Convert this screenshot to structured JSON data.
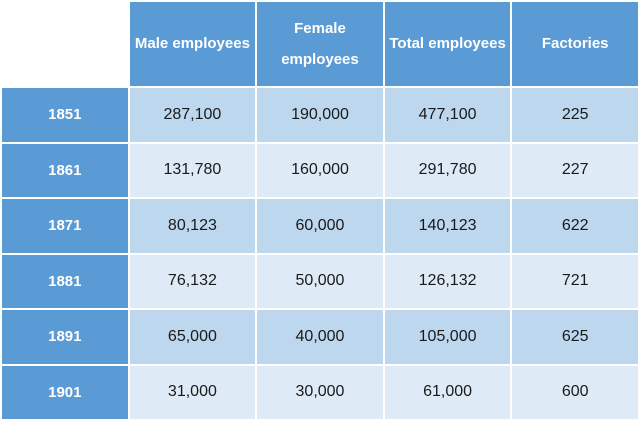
{
  "colors": {
    "header_bg": "#5b9bd5",
    "row_band_dark": "#bdd7ee",
    "row_band_light": "#deeaf6",
    "header_text": "#ffffff",
    "cell_text": "#1a1a1a",
    "border": "#ffffff"
  },
  "table": {
    "corner_label": "",
    "column_headers": [
      "Male employees",
      "Female employees",
      "Total employees",
      "Factories"
    ],
    "row_headers": [
      "1851",
      "1861",
      "1871",
      "1881",
      "1891",
      "1901"
    ],
    "rows": [
      [
        "287,100",
        "190,000",
        "477,100",
        "225"
      ],
      [
        "131,780",
        "160,000",
        "291,780",
        "227"
      ],
      [
        "80,123",
        "60,000",
        "140,123",
        "622"
      ],
      [
        "76,132",
        "50,000",
        "126,132",
        "721"
      ],
      [
        "65,000",
        "40,000",
        "105,000",
        "625"
      ],
      [
        "31,000",
        "30,000",
        "61,000",
        "600"
      ]
    ]
  },
  "chart_data": {
    "type": "table",
    "title": "",
    "columns": [
      "Year",
      "Male employees",
      "Female employees",
      "Total employees",
      "Factories"
    ],
    "rows": [
      [
        "1851",
        287100,
        190000,
        477100,
        225
      ],
      [
        "1861",
        131780,
        160000,
        291780,
        227
      ],
      [
        "1871",
        80123,
        60000,
        140123,
        622
      ],
      [
        "1881",
        76132,
        50000,
        126132,
        721
      ],
      [
        "1891",
        65000,
        40000,
        105000,
        625
      ],
      [
        "1901",
        31000,
        30000,
        61000,
        600
      ]
    ]
  }
}
